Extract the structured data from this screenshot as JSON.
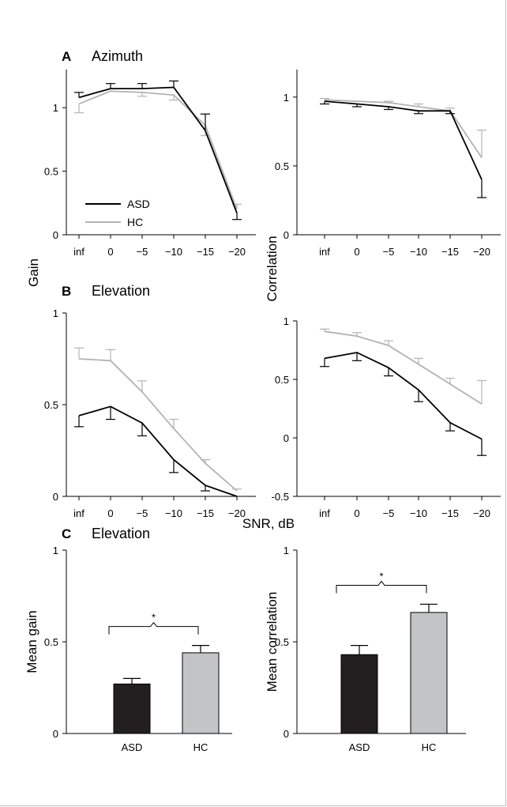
{
  "panels": {
    "A": {
      "letter": "A",
      "title": "Azimuth"
    },
    "B": {
      "letter": "B",
      "title": "Elevation"
    },
    "C": {
      "letter": "C",
      "title": "Elevation"
    }
  },
  "shared_labels": {
    "gain": "Gain",
    "correlation": "Correlation",
    "snr": "SNR, dB"
  },
  "colors": {
    "ASD": "#000000",
    "HC": "#b3b3b3",
    "HC_bar": "#c2c4c6",
    "ASD_bar": "#231f20"
  },
  "chart_data": [
    {
      "id": "A-gain",
      "type": "line",
      "panel": "A",
      "categories": [
        "inf",
        "0",
        "−5",
        "−10",
        "−15",
        "−20"
      ],
      "ylim": [
        0,
        1.3
      ],
      "yticks": [
        "0",
        "0.5",
        "1"
      ],
      "ytick_values": [
        0,
        0.5,
        1
      ],
      "ylabel": "Gain",
      "legend": {
        "position": "bottom-left",
        "entries": [
          "ASD",
          "HC"
        ]
      },
      "series": [
        {
          "name": "ASD",
          "values": [
            1.08,
            1.15,
            1.15,
            1.16,
            0.82,
            0.17
          ],
          "errors": [
            0.04,
            0.04,
            0.04,
            0.05,
            0.13,
            0.05
          ],
          "err_dir": [
            1,
            1,
            1,
            1,
            1,
            -1
          ]
        },
        {
          "name": "HC",
          "values": [
            1.03,
            1.13,
            1.12,
            1.1,
            0.86,
            0.2
          ],
          "errors": [
            0.07,
            0.03,
            0.03,
            0.04,
            0.08,
            0.04
          ],
          "err_dir": [
            -1,
            0,
            -1,
            -1,
            -1,
            1
          ]
        }
      ]
    },
    {
      "id": "A-corr",
      "type": "line",
      "panel": "A",
      "categories": [
        "inf",
        "0",
        "−5",
        "−10",
        "−15",
        "−20"
      ],
      "ylim": [
        0,
        1.2
      ],
      "yticks": [
        "0",
        "0.5",
        "1"
      ],
      "ytick_values": [
        0,
        0.5,
        1
      ],
      "ylabel": "Correlation",
      "series": [
        {
          "name": "ASD",
          "values": [
            0.97,
            0.95,
            0.93,
            0.9,
            0.9,
            0.4
          ],
          "errors": [
            0.02,
            0.02,
            0.02,
            0.02,
            0.02,
            0.13
          ],
          "err_dir": [
            -1,
            -1,
            -1,
            -1,
            -1,
            -1
          ]
        },
        {
          "name": "HC",
          "values": [
            0.98,
            0.97,
            0.96,
            0.93,
            0.9,
            0.56
          ],
          "errors": [
            0.01,
            0.01,
            0.01,
            0.02,
            0.02,
            0.2
          ],
          "err_dir": [
            1,
            0,
            1,
            1,
            1,
            1
          ]
        }
      ]
    },
    {
      "id": "B-gain",
      "type": "line",
      "panel": "B",
      "categories": [
        "inf",
        "0",
        "−5",
        "−10",
        "−15",
        "−20"
      ],
      "ylim": [
        0,
        1
      ],
      "yticks": [
        "0",
        "0.5",
        "1"
      ],
      "ytick_values": [
        0,
        0.5,
        1
      ],
      "series": [
        {
          "name": "ASD",
          "values": [
            0.44,
            0.49,
            0.4,
            0.2,
            0.06,
            0.0
          ],
          "errors": [
            0.06,
            0.07,
            0.07,
            0.07,
            0.03,
            0.0
          ],
          "err_dir": [
            -1,
            -1,
            -1,
            -1,
            -1,
            0
          ]
        },
        {
          "name": "HC",
          "values": [
            0.75,
            0.74,
            0.57,
            0.37,
            0.18,
            0.03
          ],
          "errors": [
            0.06,
            0.06,
            0.06,
            0.05,
            0.02,
            0.01
          ],
          "err_dir": [
            1,
            1,
            1,
            1,
            1,
            1
          ]
        }
      ]
    },
    {
      "id": "B-corr",
      "type": "line",
      "panel": "B",
      "categories": [
        "inf",
        "0",
        "−5",
        "−10",
        "−15",
        "−20"
      ],
      "ylim": [
        -0.5,
        1
      ],
      "yticks": [
        "-0.5",
        "0",
        "0.5",
        "1"
      ],
      "ytick_values": [
        -0.5,
        0,
        0.5,
        1
      ],
      "series": [
        {
          "name": "ASD",
          "values": [
            0.68,
            0.73,
            0.6,
            0.41,
            0.13,
            -0.01
          ],
          "errors": [
            0.07,
            0.07,
            0.07,
            0.1,
            0.07,
            0.14
          ],
          "err_dir": [
            -1,
            -1,
            -1,
            -1,
            -1,
            -1
          ]
        },
        {
          "name": "HC",
          "values": [
            0.91,
            0.87,
            0.79,
            0.63,
            0.46,
            0.29
          ],
          "errors": [
            0.02,
            0.03,
            0.04,
            0.05,
            0.05,
            0.2
          ],
          "err_dir": [
            1,
            1,
            1,
            1,
            1,
            1
          ]
        }
      ],
      "xlabel": "SNR, dB"
    },
    {
      "id": "C-gain",
      "type": "bar",
      "panel": "C",
      "categories": [
        "ASD",
        "HC"
      ],
      "values": [
        0.27,
        0.44
      ],
      "errors": [
        0.03,
        0.04
      ],
      "ylim": [
        0,
        1
      ],
      "yticks": [
        "0",
        "0.5",
        "1"
      ],
      "ytick_values": [
        0,
        0.5,
        1
      ],
      "ylabel": "Mean gain",
      "significance": "*"
    },
    {
      "id": "C-corr",
      "type": "bar",
      "panel": "C",
      "categories": [
        "ASD",
        "HC"
      ],
      "values": [
        0.43,
        0.66
      ],
      "errors": [
        0.05,
        0.045
      ],
      "ylim": [
        0,
        1
      ],
      "yticks": [
        "0",
        "0.5",
        "1"
      ],
      "ytick_values": [
        0,
        0.5,
        1
      ],
      "ylabel": "Mean correlation",
      "significance": "*"
    }
  ]
}
